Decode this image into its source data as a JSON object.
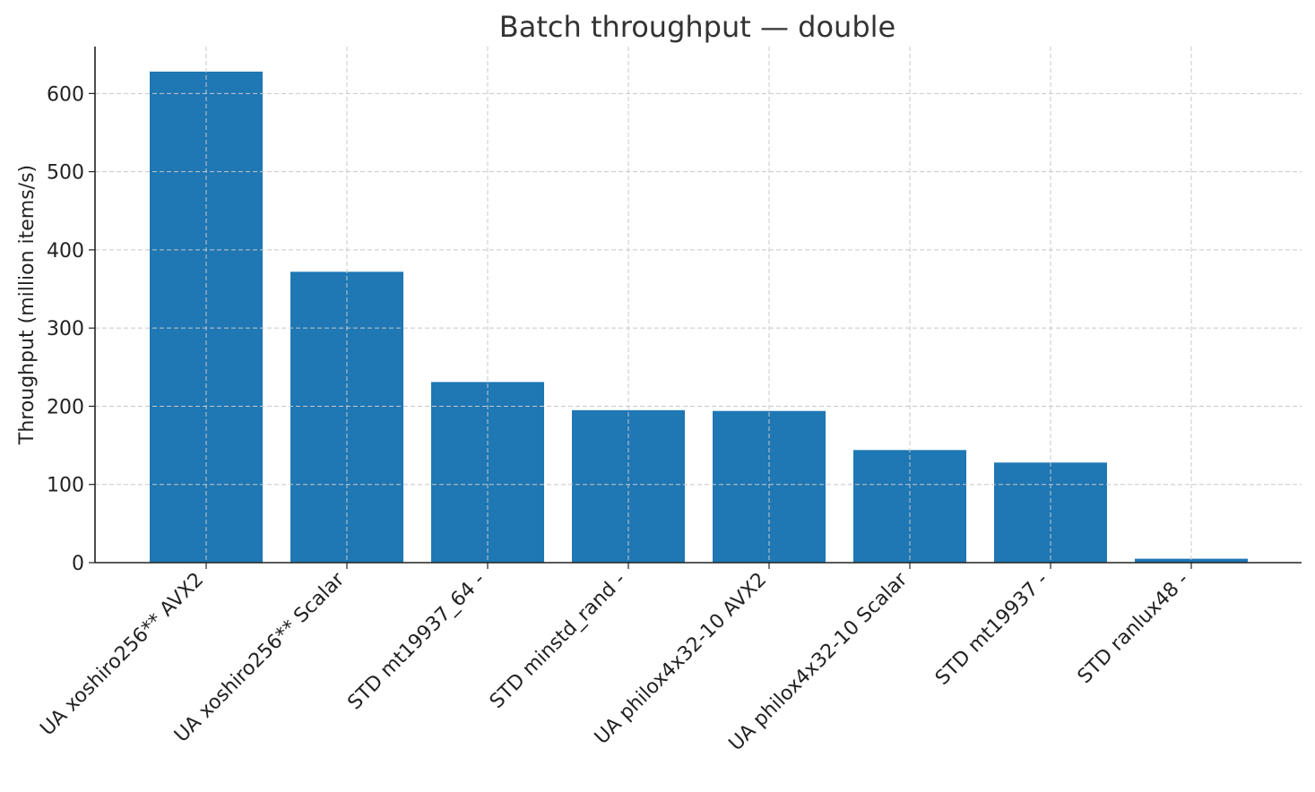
{
  "chart_data": {
    "type": "bar",
    "title": "Batch throughput — double",
    "xlabel": "",
    "ylabel": "Throughput (million items/s)",
    "categories": [
      "UA xoshiro256** AVX2",
      "UA xoshiro256** Scalar",
      "STD mt19937_64 -",
      "STD minstd_rand -",
      "UA philox4x32-10 AVX2",
      "UA philox4x32-10 Scalar",
      "STD mt19937 -",
      "STD ranlux48 -"
    ],
    "values": [
      628,
      372,
      231,
      195,
      194,
      144,
      128,
      5
    ],
    "ylim": [
      0,
      660
    ],
    "yticks": [
      0,
      100,
      200,
      300,
      400,
      500,
      600
    ],
    "grid": true,
    "bar_color": "#1f77b4"
  }
}
